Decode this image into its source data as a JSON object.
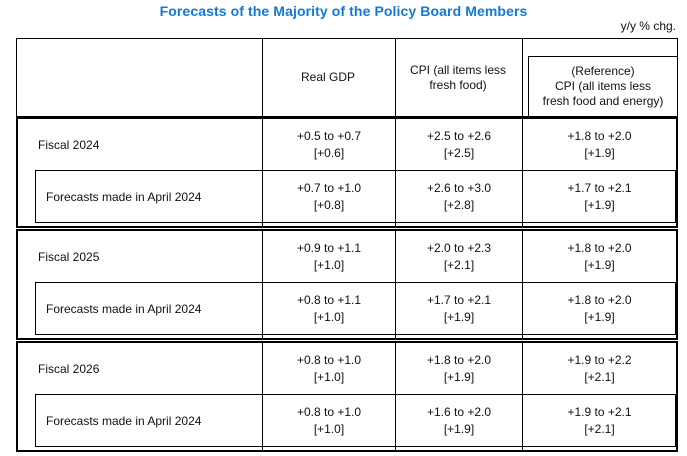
{
  "title": "Forecasts of the Majority of the Policy Board Members",
  "unit_note": "y/y % chg.",
  "table": {
    "header": {
      "real_gdp": "Real GDP",
      "cpi": "CPI (all items less\nfresh food)",
      "cpi_ex": "(Reference)\nCPI (all items less\nfresh food and energy)"
    },
    "groups": [
      {
        "fiscal_label": "Fiscal 2024",
        "fiscal": {
          "gdp": "+0.5 to +0.7\n[+0.6]",
          "cpi": "+2.5 to +2.6\n[+2.5]",
          "cpi_ex": "+1.8 to +2.0\n[+1.9]"
        },
        "april_label": "Forecasts made in April 2024",
        "april": {
          "gdp": "+0.7 to +1.0\n[+0.8]",
          "cpi": "+2.6 to +3.0\n[+2.8]",
          "cpi_ex": "+1.7 to +2.1\n[+1.9]"
        }
      },
      {
        "fiscal_label": "Fiscal 2025",
        "fiscal": {
          "gdp": "+0.9 to +1.1\n[+1.0]",
          "cpi": "+2.0 to +2.3\n[+2.1]",
          "cpi_ex": "+1.8 to +2.0\n[+1.9]"
        },
        "april_label": "Forecasts made in April 2024",
        "april": {
          "gdp": "+0.8 to +1.1\n[+1.0]",
          "cpi": "+1.7 to +2.1\n[+1.9]",
          "cpi_ex": "+1.8 to +2.0\n[+1.9]"
        }
      },
      {
        "fiscal_label": "Fiscal 2026",
        "fiscal": {
          "gdp": "+0.8 to +1.0\n[+1.0]",
          "cpi": "+1.8 to +2.0\n[+1.9]",
          "cpi_ex": "+1.9 to +2.2\n[+2.1]"
        },
        "april_label": "Forecasts made in April 2024",
        "april": {
          "gdp": "+0.8 to +1.0\n[+1.0]",
          "cpi": "+1.6 to +2.0\n[+1.9]",
          "cpi_ex": "+1.9 to +2.1\n[+2.1]"
        }
      }
    ]
  }
}
